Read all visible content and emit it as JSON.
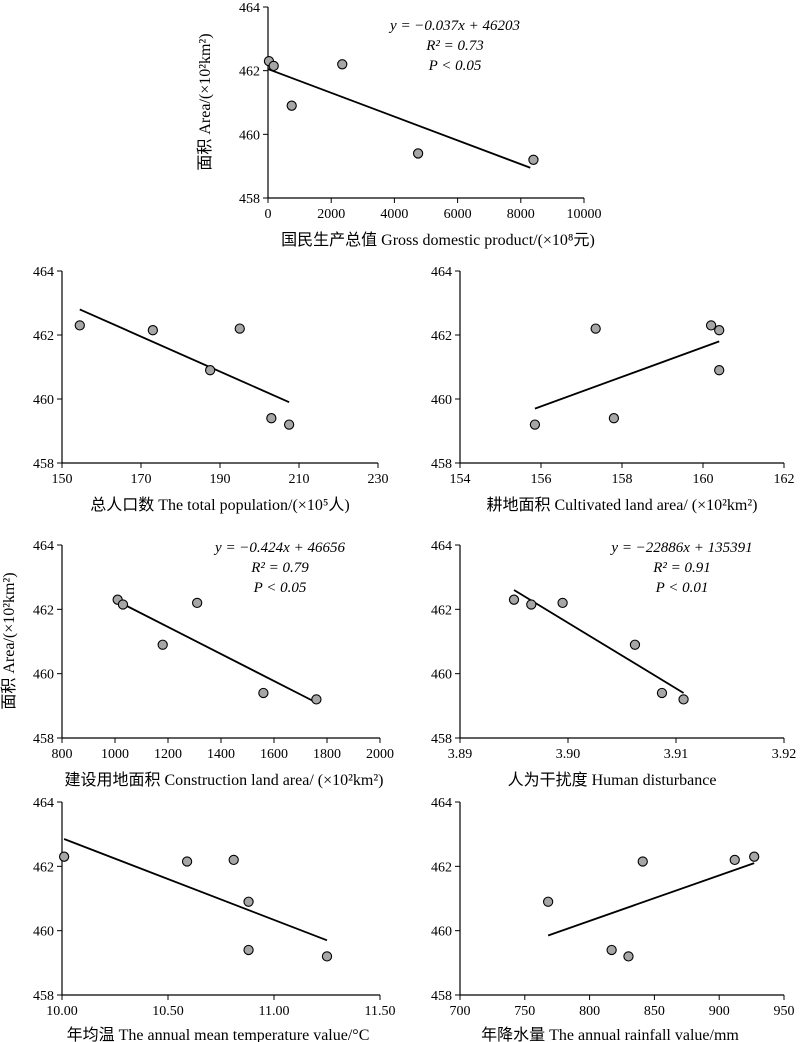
{
  "figure": {
    "ylabel": "面积 Area/(×10²km²)"
  },
  "chart_data": [
    {
      "type": "scatter",
      "id": "gdp",
      "xlabel": "国民生产总值 Gross domestic product/(×10⁸元)",
      "ylabel": "面积 Area/(×10²km²)",
      "xlim": [
        0,
        10000
      ],
      "ylim": [
        458,
        464
      ],
      "xticks": [
        0,
        2000,
        4000,
        6000,
        8000,
        10000
      ],
      "xtick_labels": [
        "0",
        "2000",
        "4000",
        "6000",
        "8000",
        "10000"
      ],
      "yticks": [
        458,
        460,
        462,
        464
      ],
      "ytick_labels": [
        "458",
        "460",
        "462",
        "464"
      ],
      "x": [
        30,
        180,
        750,
        2350,
        4750,
        8400
      ],
      "y": [
        462.3,
        462.15,
        460.9,
        462.2,
        459.4,
        459.2
      ],
      "trend": {
        "x": [
          0,
          8300
        ],
        "y": [
          462.05,
          458.95
        ]
      },
      "equation": [
        "y = −0.037x + 46203",
        "R² = 0.73",
        "P < 0.05"
      ]
    },
    {
      "type": "scatter",
      "id": "population",
      "xlabel": "总人口数 The total population/(×10⁵人)",
      "xlim": [
        150,
        230
      ],
      "ylim": [
        458,
        464
      ],
      "xticks": [
        150,
        170,
        190,
        210,
        230
      ],
      "xtick_labels": [
        "150",
        "170",
        "190",
        "210",
        "230"
      ],
      "yticks": [
        458,
        460,
        462,
        464
      ],
      "ytick_labels": [
        "458",
        "460",
        "462",
        "464"
      ],
      "x": [
        154.5,
        173,
        187.5,
        195,
        203,
        207.5
      ],
      "y": [
        462.3,
        462.15,
        460.9,
        462.2,
        459.4,
        459.2
      ],
      "trend": {
        "x": [
          154.5,
          207.5
        ],
        "y": [
          462.8,
          459.9
        ]
      }
    },
    {
      "type": "scatter",
      "id": "cultivated",
      "xlabel": "耕地面积 Cultivated land area/ (×10²km²)",
      "xlim": [
        154,
        162
      ],
      "ylim": [
        458,
        464
      ],
      "xticks": [
        154,
        156,
        158,
        160,
        162
      ],
      "xtick_labels": [
        "154",
        "156",
        "158",
        "160",
        "162"
      ],
      "yticks": [
        458,
        460,
        462,
        464
      ],
      "ytick_labels": [
        "458",
        "460",
        "462",
        "464"
      ],
      "x": [
        155.85,
        157.35,
        157.8,
        160.2,
        160.4,
        160.4
      ],
      "y": [
        459.2,
        462.2,
        459.4,
        462.3,
        462.15,
        460.9
      ],
      "trend": {
        "x": [
          155.85,
          160.4
        ],
        "y": [
          459.7,
          461.8
        ]
      }
    },
    {
      "type": "scatter",
      "id": "construction",
      "xlabel": "建设用地面积 Construction land area/ (×10²km²)",
      "ylabel": "面积 Area/(×10²km²)",
      "xlim": [
        800,
        2000
      ],
      "ylim": [
        458,
        464
      ],
      "xticks": [
        800,
        1000,
        1200,
        1400,
        1600,
        1800,
        2000
      ],
      "xtick_labels": [
        "800",
        "1000",
        "1200",
        "1400",
        "1600",
        "1800",
        "2000"
      ],
      "yticks": [
        458,
        460,
        462,
        464
      ],
      "ytick_labels": [
        "458",
        "460",
        "462",
        "464"
      ],
      "x": [
        1010,
        1030,
        1180,
        1310,
        1560,
        1760
      ],
      "y": [
        462.3,
        462.15,
        460.9,
        462.2,
        459.4,
        459.2
      ],
      "trend": {
        "x": [
          1010,
          1760
        ],
        "y": [
          462.25,
          459.1
        ]
      },
      "equation": [
        "y = −0.424x + 46656",
        "R² = 0.79",
        "P < 0.05"
      ]
    },
    {
      "type": "scatter",
      "id": "human",
      "xlabel": "人为干扰度 Human disturbance",
      "xlim": [
        3.89,
        3.92
      ],
      "ylim": [
        458,
        464
      ],
      "xticks": [
        3.89,
        3.9,
        3.91,
        3.92
      ],
      "xtick_labels": [
        "3.89",
        "3.90",
        "3.91",
        "3.92"
      ],
      "yticks": [
        458,
        460,
        462,
        464
      ],
      "ytick_labels": [
        "458",
        "460",
        "462",
        "464"
      ],
      "x": [
        3.895,
        3.8966,
        3.8995,
        3.9062,
        3.9087,
        3.9107
      ],
      "y": [
        462.3,
        462.15,
        462.2,
        460.9,
        459.4,
        459.2
      ],
      "trend": {
        "x": [
          3.895,
          3.9107
        ],
        "y": [
          462.6,
          459.4
        ]
      },
      "equation": [
        "y = −22886x + 135391",
        "R² = 0.91",
        "P < 0.01"
      ]
    },
    {
      "type": "scatter",
      "id": "temperature",
      "xlabel": "年均温 The annual mean temperature value/°C",
      "xlim": [
        10.0,
        11.5
      ],
      "ylim": [
        458,
        464
      ],
      "xticks": [
        10.0,
        10.5,
        11.0,
        11.5
      ],
      "xtick_labels": [
        "10.00",
        "10.50",
        "11.00",
        "11.50"
      ],
      "yticks": [
        458,
        460,
        462,
        464
      ],
      "ytick_labels": [
        "458",
        "460",
        "462",
        "464"
      ],
      "x": [
        10.01,
        10.59,
        10.81,
        10.88,
        10.88,
        11.25
      ],
      "y": [
        462.3,
        462.15,
        462.2,
        460.9,
        459.4,
        459.2
      ],
      "trend": {
        "x": [
          10.01,
          11.25
        ],
        "y": [
          462.85,
          459.7
        ]
      }
    },
    {
      "type": "scatter",
      "id": "rainfall",
      "xlabel": "年降水量 The annual rainfall value/mm",
      "xlim": [
        700,
        950
      ],
      "ylim": [
        458,
        464
      ],
      "xticks": [
        700,
        750,
        800,
        850,
        900,
        950
      ],
      "xtick_labels": [
        "700",
        "750",
        "800",
        "850",
        "900",
        "950"
      ],
      "yticks": [
        458,
        460,
        462,
        464
      ],
      "ytick_labels": [
        "458",
        "460",
        "462",
        "464"
      ],
      "x": [
        768,
        817,
        830,
        841,
        912,
        927
      ],
      "y": [
        460.9,
        459.4,
        459.2,
        462.15,
        462.2,
        462.3
      ],
      "trend": {
        "x": [
          768,
          927
        ],
        "y": [
          459.85,
          462.1
        ]
      }
    }
  ]
}
